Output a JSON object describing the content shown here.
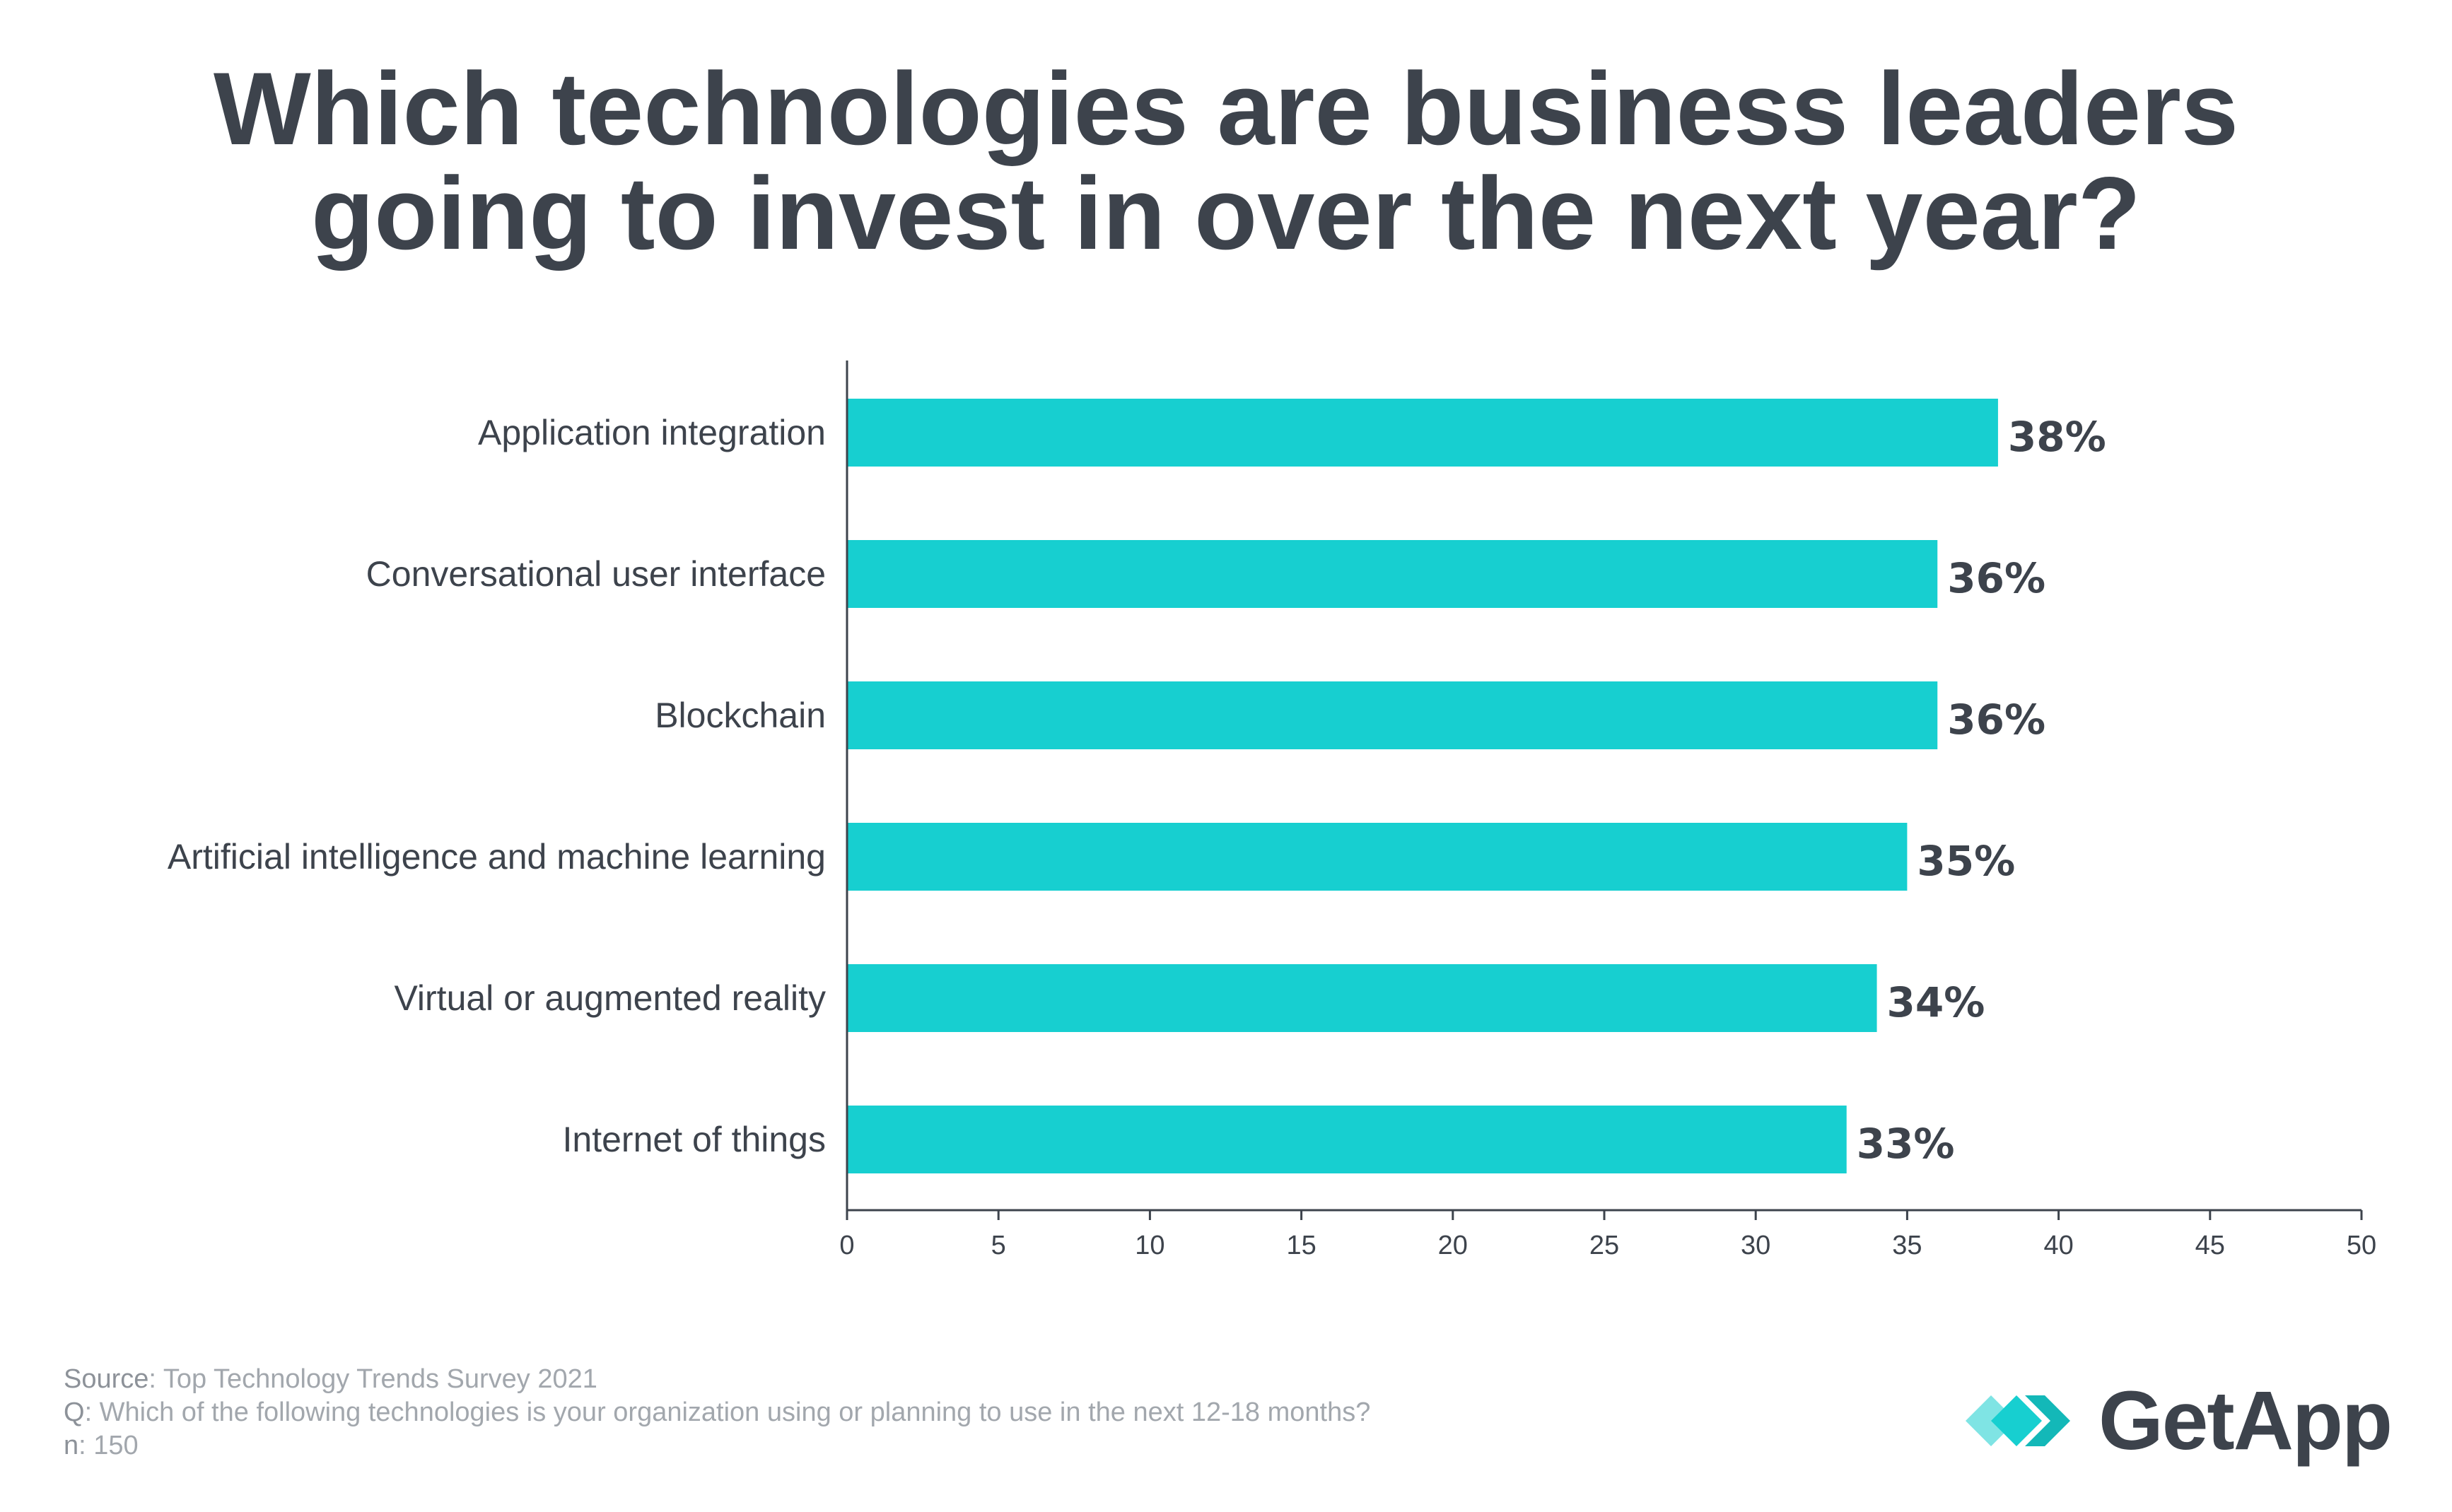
{
  "title_lines": [
    "Which technologies are business leaders",
    "going to invest in over the next year?"
  ],
  "chart_data": {
    "type": "bar",
    "orientation": "horizontal",
    "title": "Which technologies are business leaders going to invest in over the next year?",
    "categories": [
      "Application integration",
      "Conversational user interface",
      "Blockchain",
      "Artificial intelligence and machine learning",
      "Virtual or augmented reality",
      "Internet of things"
    ],
    "values": [
      38,
      36,
      36,
      35,
      34,
      33
    ],
    "value_labels": [
      "38%",
      "36%",
      "36%",
      "35%",
      "34%",
      "33%"
    ],
    "xlim": [
      0,
      50
    ],
    "xticks": [
      0,
      5,
      10,
      15,
      20,
      25,
      30,
      35,
      40,
      45,
      50
    ],
    "xlabel": "",
    "ylabel": "",
    "bar_color": "#17cfd0",
    "grid": false,
    "legend": "none"
  },
  "footer": {
    "source_key": "Source",
    "source_text": ": Top Technology Trends Survey 2021",
    "q_key": "Q",
    "q_text": ": Which of the following technologies is your organization using or planning to use in the next 12-18 months?",
    "n_key": "n",
    "n_text": ": 150"
  },
  "logo": {
    "text": "GetApp",
    "icon": "getapp-chevrons-icon",
    "colors": [
      "#17cfd0",
      "#13b8b8",
      "#7fe4e4"
    ]
  }
}
